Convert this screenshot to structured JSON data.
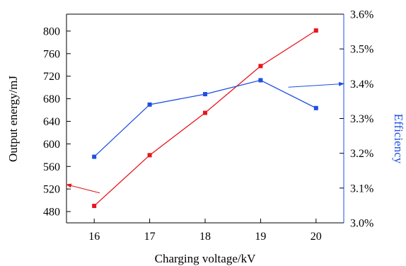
{
  "chart_data": {
    "type": "line",
    "title": "",
    "xlabel": "Charging voltage/kV",
    "ylabel_left": "Output energy/mJ",
    "ylabel_right": "Efficiency",
    "x_ticks": [
      "16",
      "17",
      "18",
      "19",
      "20"
    ],
    "y_left_ticks": [
      "480",
      "520",
      "560",
      "600",
      "640",
      "680",
      "720",
      "760",
      "800"
    ],
    "y_right_ticks": [
      "3.0%",
      "3.1%",
      "3.2%",
      "3.3%",
      "3.4%",
      "3.5%",
      "3.6%"
    ],
    "xlim": [
      15.5,
      20.5
    ],
    "ylim_left": [
      460,
      830
    ],
    "ylim_right": [
      3.0,
      3.6
    ],
    "grid": false,
    "legend": "none",
    "colors": {
      "energy": "#e8141c",
      "efficiency": "#1e4fe0",
      "right_axis": "#1e4fe0",
      "left_axis": "#000000"
    },
    "series": [
      {
        "axis": "left",
        "x": [
          16,
          17,
          18,
          19,
          20
        ],
        "values": [
          490,
          580,
          655,
          738,
          801
        ]
      },
      {
        "axis": "right",
        "x": [
          16,
          17,
          18,
          19,
          20
        ],
        "values": [
          3.19,
          3.34,
          3.37,
          3.41,
          3.33
        ]
      }
    ],
    "annotations": [
      {
        "type": "arrow",
        "series": 0,
        "points_to": "left-axis",
        "from": [
          16.1,
          513
        ],
        "to": [
          15.5,
          528
        ]
      },
      {
        "type": "arrow",
        "series": 1,
        "points_to": "right-axis",
        "from": [
          19.5,
          3.39
        ],
        "to": [
          20.5,
          3.4
        ]
      }
    ]
  }
}
